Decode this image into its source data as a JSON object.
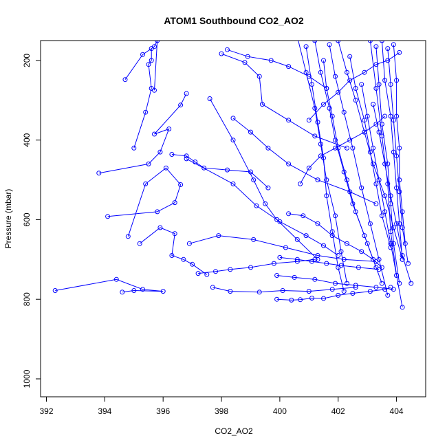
{
  "chart_data": {
    "type": "line",
    "title": "ATOM1 Southbound CO2_AO2",
    "xlabel": "CO2_AO2",
    "ylabel": "Pressure (mbar)",
    "xlim": [
      391.8,
      405.0
    ],
    "ylim": [
      1045,
      150
    ],
    "y_inverted": true,
    "x_ticks": [
      392,
      394,
      396,
      398,
      400,
      402,
      404
    ],
    "y_ticks": [
      200,
      400,
      600,
      800,
      1000
    ],
    "grid": false,
    "legend": "none",
    "marker": "open-circle",
    "colors": {
      "series": "#0000ff",
      "axes": "#000000",
      "background": "#ffffff"
    },
    "series": [
      {
        "x": [
          392.3,
          394.4,
          395.3,
          396.0,
          395.0,
          394.6
        ],
        "y": [
          778,
          750,
          775,
          780,
          778,
          782
        ]
      },
      {
        "x": [
          393.8,
          395.5,
          395.9,
          396.2,
          395.7,
          396.6,
          396.8
        ],
        "y": [
          483,
          460,
          430,
          372,
          385,
          312,
          283
        ]
      },
      {
        "x": [
          394.1,
          395.8,
          396.4,
          396.6,
          396.1,
          395.4,
          394.8
        ],
        "y": [
          592,
          580,
          557,
          512,
          470,
          510,
          642
        ]
      },
      {
        "x": [
          395.0,
          395.4,
          395.6,
          395.5,
          395.6,
          395.6
        ],
        "y": [
          420,
          330,
          270,
          210,
          200,
          170
        ]
      },
      {
        "x": [
          394.7,
          395.3,
          395.7,
          395.8,
          395.7
        ],
        "y": [
          248,
          185,
          165,
          150,
          275
        ]
      },
      {
        "x": [
          395.2,
          395.9,
          396.4,
          396.3,
          396.7,
          397.0,
          397.5
        ],
        "y": [
          660,
          620,
          635,
          690,
          700,
          712,
          738
        ]
      },
      {
        "x": [
          396.3,
          396.8,
          397.1,
          397.4,
          398.2,
          399.0,
          399.6
        ],
        "y": [
          436,
          440,
          455,
          470,
          475,
          480,
          520
        ]
      },
      {
        "x": [
          396.8,
          398.4,
          399.2,
          400.0,
          400.9,
          401.5,
          402.0
        ],
        "y": [
          447,
          510,
          565,
          605,
          640,
          665,
          690
        ]
      },
      {
        "x": [
          397.2,
          397.8,
          398.3,
          399.0,
          399.8,
          400.6,
          401.2
        ],
        "y": [
          735,
          730,
          725,
          720,
          710,
          705,
          700
        ]
      },
      {
        "x": [
          396.9,
          397.9,
          399.1,
          400.2,
          401.3,
          402.2,
          403.3
        ],
        "y": [
          660,
          640,
          650,
          670,
          690,
          700,
          705
        ]
      },
      {
        "x": [
          397.7,
          398.3,
          399.3,
          400.1,
          401.0,
          401.8,
          402.6
        ],
        "y": [
          770,
          780,
          782,
          778,
          780,
          775,
          770
        ]
      },
      {
        "x": [
          397.6,
          398.4,
          399.1,
          399.5,
          399.9,
          400.6,
          401.3
        ],
        "y": [
          296,
          400,
          500,
          560,
          600,
          650,
          700
        ]
      },
      {
        "x": [
          398.0,
          398.8,
          399.3,
          399.4,
          400.3,
          401.2,
          402.3
        ],
        "y": [
          183,
          205,
          240,
          310,
          350,
          390,
          420
        ]
      },
      {
        "x": [
          398.2,
          398.9,
          399.7,
          400.3,
          401.0,
          401.6
        ],
        "y": [
          173,
          190,
          200,
          215,
          240,
          270
        ]
      },
      {
        "x": [
          398.4,
          399.0,
          399.6,
          400.3,
          401.3,
          402.4,
          403.3
        ],
        "y": [
          345,
          380,
          420,
          460,
          500,
          530,
          560
        ]
      },
      {
        "x": [
          399.9,
          400.4,
          400.7,
          401.1,
          401.5,
          402.0,
          402.5,
          403.1,
          403.6,
          403.8
        ],
        "y": [
          800,
          802,
          801,
          797,
          798,
          790,
          785,
          780,
          775,
          770
        ]
      },
      {
        "x": [
          400.6,
          400.9,
          401.2,
          401.4,
          401.6,
          401.9,
          402.1,
          402.3
        ],
        "y": [
          140,
          230,
          320,
          410,
          500,
          590,
          680,
          760
        ]
      },
      {
        "x": [
          400.9,
          401.1,
          401.3,
          401.5,
          401.6,
          401.8,
          402.0,
          402.2
        ],
        "y": [
          165,
          260,
          355,
          445,
          540,
          630,
          720,
          780
        ]
      },
      {
        "x": [
          401.2,
          401.4,
          401.7,
          401.9,
          402.2,
          402.5,
          402.9,
          403.3
        ],
        "y": [
          150,
          230,
          320,
          400,
          480,
          560,
          640,
          720
        ]
      },
      {
        "x": [
          401.5,
          401.6,
          401.8,
          402.0,
          402.3,
          402.6,
          403.0,
          403.5
        ],
        "y": [
          200,
          270,
          340,
          420,
          500,
          580,
          660,
          760
        ]
      },
      {
        "x": [
          401.7,
          401.9,
          402.2,
          402.5,
          402.8,
          403.1,
          403.4,
          403.7
        ],
        "y": [
          160,
          240,
          330,
          420,
          520,
          610,
          700,
          790
        ]
      },
      {
        "x": [
          401.0,
          401.5,
          402.0,
          402.4,
          402.9,
          403.3,
          403.7,
          404.1
        ],
        "y": [
          350,
          310,
          280,
          250,
          230,
          210,
          200,
          180
        ]
      },
      {
        "x": [
          402.0,
          402.3,
          402.6,
          402.9,
          403.2,
          403.6,
          403.9,
          404.2
        ],
        "y": [
          150,
          230,
          300,
          380,
          460,
          540,
          620,
          700
        ]
      },
      {
        "x": [
          403.1,
          403.3,
          403.5,
          403.7,
          403.8,
          404.0,
          404.2
        ],
        "y": [
          150,
          270,
          390,
          510,
          630,
          740,
          820
        ]
      },
      {
        "x": [
          403.3,
          403.4,
          403.5,
          403.7,
          403.8,
          403.9,
          404.1
        ],
        "y": [
          165,
          260,
          360,
          460,
          560,
          660,
          760
        ]
      },
      {
        "x": [
          403.5,
          403.6,
          403.8,
          403.9,
          404.0,
          404.1,
          404.2
        ],
        "y": [
          150,
          250,
          340,
          430,
          520,
          610,
          700
        ]
      },
      {
        "x": [
          403.7,
          403.8,
          403.9,
          404.0,
          404.1,
          404.2,
          404.4
        ],
        "y": [
          170,
          260,
          350,
          440,
          530,
          620,
          710
        ]
      },
      {
        "x": [
          403.9,
          404.0,
          404.0,
          404.1,
          404.1,
          404.2,
          404.3
        ],
        "y": [
          160,
          250,
          340,
          420,
          500,
          580,
          660
        ]
      },
      {
        "x": [
          403.2,
          403.4,
          403.6,
          403.8,
          404.0,
          404.2,
          404.5
        ],
        "y": [
          310,
          380,
          460,
          540,
          610,
          690,
          760
        ]
      },
      {
        "x": [
          402.8,
          403.0,
          403.2,
          403.4,
          403.6,
          403.8,
          404.0
        ],
        "y": [
          260,
          340,
          420,
          500,
          580,
          660,
          740
        ]
      },
      {
        "x": [
          402.4,
          402.6,
          402.9,
          403.1,
          403.3,
          403.5,
          403.8
        ],
        "y": [
          190,
          270,
          350,
          430,
          510,
          590,
          670
        ]
      },
      {
        "x": [
          400.3,
          400.8,
          401.3,
          401.8,
          402.3,
          402.8,
          403.2,
          403.5
        ],
        "y": [
          585,
          590,
          610,
          640,
          660,
          680,
          700,
          720
        ]
      },
      {
        "x": [
          400.7,
          401.0,
          401.4,
          401.9,
          402.4,
          402.9,
          403.3,
          403.6
        ],
        "y": [
          510,
          470,
          440,
          420,
          400,
          380,
          360,
          340
        ]
      },
      {
        "x": [
          399.9,
          400.5,
          401.2,
          401.9,
          402.6,
          403.3,
          403.9
        ],
        "y": [
          740,
          745,
          750,
          760,
          765,
          770,
          775
        ]
      },
      {
        "x": [
          400.0,
          400.6,
          401.1,
          401.6,
          402.1,
          402.7,
          403.4
        ],
        "y": [
          695,
          700,
          705,
          710,
          715,
          720,
          725
        ]
      }
    ]
  }
}
